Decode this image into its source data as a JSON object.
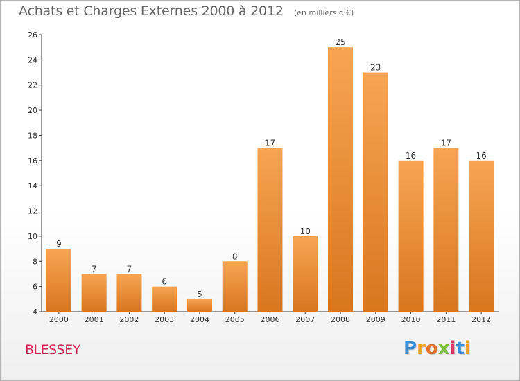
{
  "title": "Achats et Charges Externes 2000 à 2012",
  "subtitle": "(en milliers d'€)",
  "commune": "BLESSEY",
  "logo": {
    "letters": [
      "P",
      "r",
      "o",
      "x",
      "i",
      "t",
      "i"
    ],
    "colors": [
      "#3a8fd8",
      "#f0a020",
      "#e8732a",
      "#7cc242",
      "#d23a64",
      "#3a8fd8",
      "#f0a020"
    ]
  },
  "colors": {
    "bar_top": "#f7a553",
    "bar_bottom": "#d9761e",
    "title": "#666666",
    "commune": "#cc2a55",
    "axis": "#333333"
  },
  "chart_data": {
    "type": "bar",
    "categories": [
      "2000",
      "2001",
      "2002",
      "2003",
      "2004",
      "2005",
      "2006",
      "2007",
      "2008",
      "2009",
      "2010",
      "2011",
      "2012"
    ],
    "values": [
      9,
      7,
      7,
      6,
      5,
      8,
      17,
      10,
      25,
      23,
      16,
      17,
      16
    ],
    "value_labels": [
      "9",
      "7",
      "7",
      "6",
      "5",
      "8",
      "17",
      "10",
      "25",
      "23",
      "16",
      "17",
      "16"
    ],
    "title": "Achats et Charges Externes 2000 à 2012",
    "xlabel": "",
    "ylabel": "",
    "ylim": [
      4,
      26
    ],
    "yticks": [
      4,
      6,
      8,
      10,
      12,
      14,
      16,
      18,
      20,
      22,
      24,
      26
    ],
    "grid": false,
    "legend": "none"
  }
}
